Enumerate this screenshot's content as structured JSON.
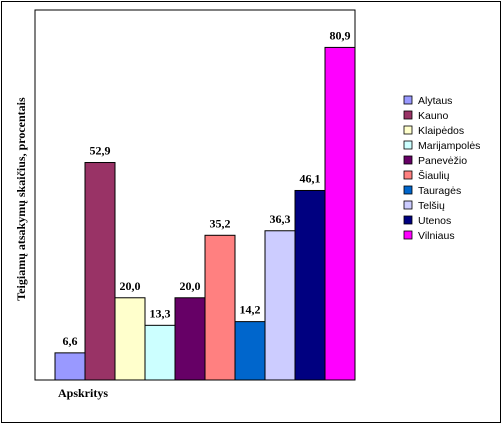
{
  "chart_data": {
    "type": "bar",
    "title": "",
    "ylabel": "Teigiamų atsakymų skaičius, procentais",
    "xlabel": "Apskritys",
    "ylim": [
      0,
      90
    ],
    "grid": false,
    "legend_position": "right",
    "series": [
      {
        "name": "Alytaus",
        "value": 6.6,
        "label": "6,6",
        "color": "#9999ff"
      },
      {
        "name": "Kauno",
        "value": 52.9,
        "label": "52,9",
        "color": "#993366"
      },
      {
        "name": "Klaipėdos",
        "value": 20.0,
        "label": "20,0",
        "color": "#ffffcc"
      },
      {
        "name": "Marijampolės",
        "value": 13.3,
        "label": "13,3",
        "color": "#ccffff"
      },
      {
        "name": "Panevėžio",
        "value": 20.0,
        "label": "20,0",
        "color": "#660066"
      },
      {
        "name": "Šiaulių",
        "value": 35.2,
        "label": "35,2",
        "color": "#ff8080"
      },
      {
        "name": "Tauragės",
        "value": 14.2,
        "label": "14,2",
        "color": "#0066cc"
      },
      {
        "name": "Telšių",
        "value": 36.3,
        "label": "36,3",
        "color": "#ccccff"
      },
      {
        "name": "Utenos",
        "value": 46.1,
        "label": "46,1",
        "color": "#000080"
      },
      {
        "name": "Vilniaus",
        "value": 80.9,
        "label": "80,9",
        "color": "#ff00ff"
      }
    ]
  }
}
